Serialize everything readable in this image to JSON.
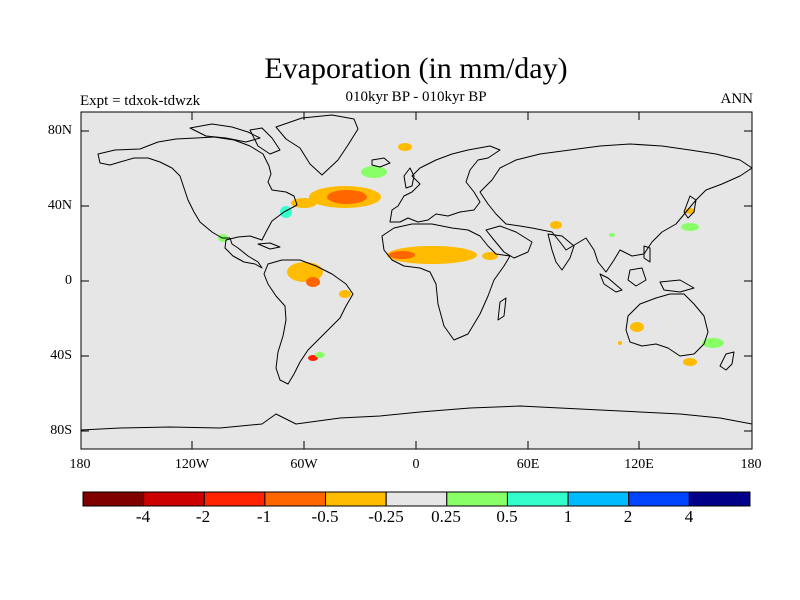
{
  "header": {
    "title": "Evaporation (in mm/day)",
    "subtitle": "010kyr BP - 010kyr BP",
    "left_label": "Expt = tdxok-tdwzk",
    "right_label": "ANN"
  },
  "map": {
    "background_color": "#e6e6e6",
    "y_ticks": [
      "80N",
      "40N",
      "0",
      "40S",
      "80S"
    ],
    "x_ticks": [
      "180",
      "120W",
      "60W",
      "0",
      "60E",
      "120E",
      "180"
    ]
  },
  "colorbar": {
    "colors": [
      "#800000",
      "#cc0000",
      "#ff2200",
      "#ff6600",
      "#ffbb00",
      "#e6e6e6",
      "#88ff66",
      "#33ffcc",
      "#00bbff",
      "#0044ff",
      "#000088"
    ],
    "labels": [
      "-4",
      "-2",
      "-1",
      "-0.5",
      "-0.25",
      "0.25",
      "0.5",
      "1",
      "2",
      "4"
    ]
  },
  "legend_colors": {
    "orange": "#ffbb00",
    "dark_orange": "#ff6600",
    "red": "#ff2200",
    "green": "#88ff66",
    "teal": "#33ffcc"
  }
}
